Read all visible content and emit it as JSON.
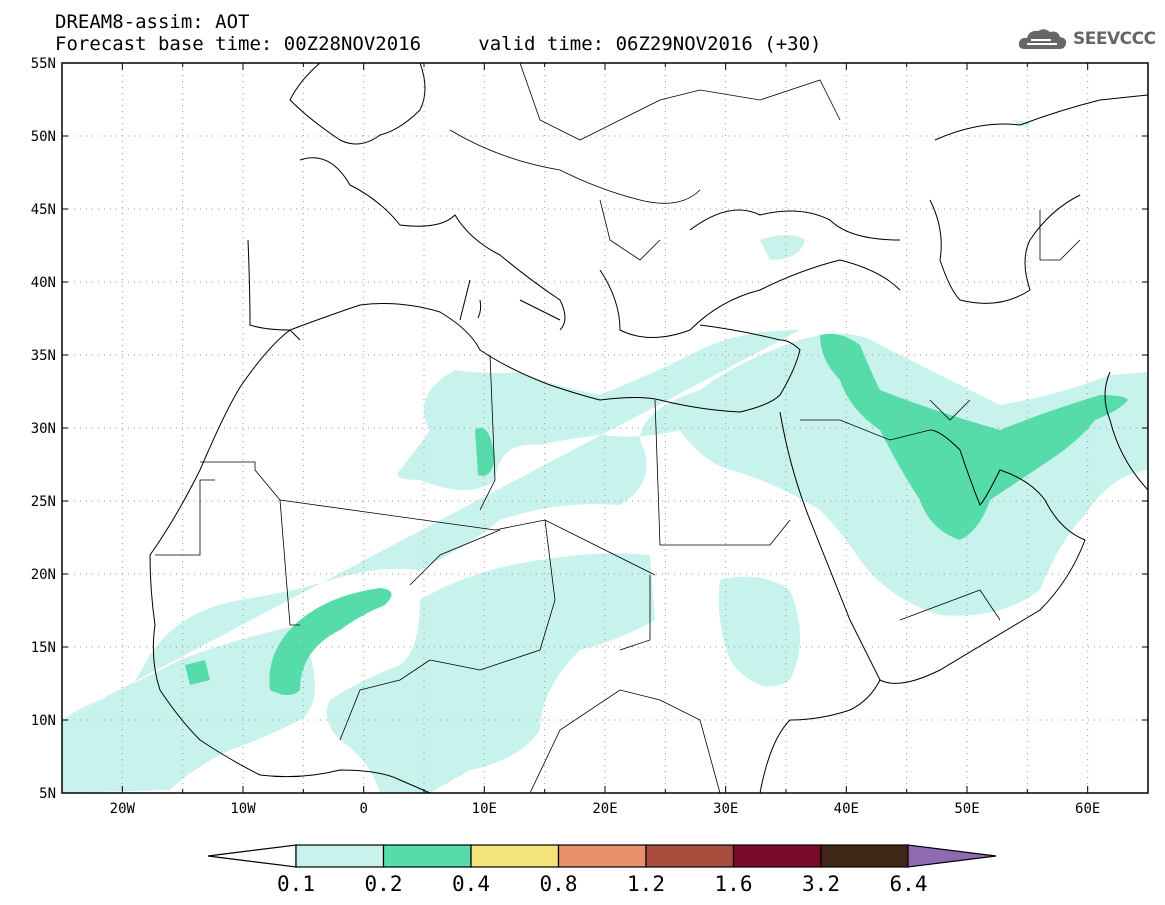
{
  "header": {
    "title_line1": "DREAM8-assim: AOT",
    "base_time_label": "Forecast base time:",
    "base_time": "00Z28NOV2016",
    "valid_time_label": "valid time:",
    "valid_time": "06Z29NOV2016 (+30)"
  },
  "logo": {
    "text": "SEEVCCC",
    "icon": "cloud-logo-icon"
  },
  "map": {
    "lon_range": [
      -25,
      65
    ],
    "lat_range": [
      5,
      55
    ],
    "lat_labels": [
      "5N",
      "10N",
      "15N",
      "20N",
      "25N",
      "30N",
      "35N",
      "40N",
      "45N",
      "50N",
      "55N"
    ],
    "lon_labels": [
      "20W",
      "10W",
      "0",
      "10E",
      "20E",
      "30E",
      "40E",
      "50E",
      "60E"
    ]
  },
  "colorbar": {
    "labels": [
      "0.1",
      "0.2",
      "0.4",
      "0.8",
      "1.2",
      "1.6",
      "3.2",
      "6.4"
    ],
    "colors": [
      "#ffffff",
      "#c8f2ec",
      "#55dcaa",
      "#f4e37a",
      "#e8916a",
      "#a94c3e",
      "#7a0a2a",
      "#3f2616",
      "#8f6ab0"
    ]
  }
}
